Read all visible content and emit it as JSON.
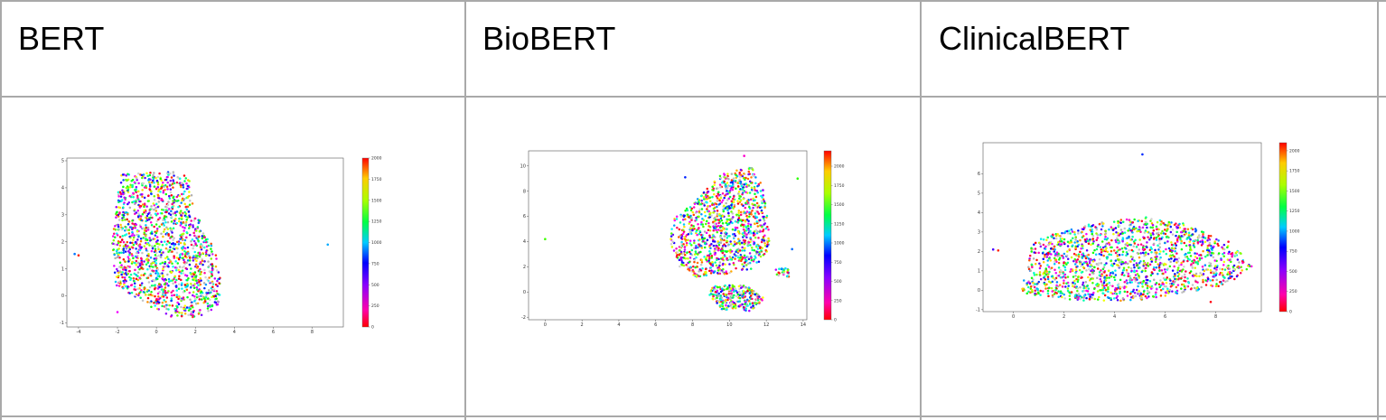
{
  "table": {
    "headers": [
      "BERT",
      "BioBERT",
      "ClinicalBERT"
    ]
  },
  "chart_data": [
    {
      "type": "scatter",
      "title": "BERT",
      "xlim": [
        -4.6,
        9.6
      ],
      "ylim": [
        -1.15,
        5.1
      ],
      "xticks": [
        "-4",
        "-2",
        "0",
        "2",
        "4",
        "6",
        "8"
      ],
      "yticks": [
        "-1",
        "0",
        "1",
        "2",
        "3",
        "4",
        "5"
      ],
      "colorbar": {
        "min": 0,
        "max": 2000,
        "ticks": [
          "0",
          "250",
          "500",
          "750",
          "1000",
          "1250",
          "1500",
          "1750",
          "2000"
        ],
        "colormap": "hsv"
      },
      "grid": false,
      "clusters": [
        {
          "shape": [
            [
              -1.8,
              4.5
            ],
            [
              0.8,
              4.6
            ],
            [
              1.7,
              4.4
            ],
            [
              1.9,
              3.2
            ],
            [
              2.6,
              2.3
            ],
            [
              3.4,
              0.9
            ],
            [
              3.3,
              -0.3
            ],
            [
              2.2,
              -0.8
            ],
            [
              0.6,
              -0.8
            ],
            [
              -0.5,
              -0.3
            ],
            [
              -2.1,
              0.4
            ],
            [
              -2.3,
              2.0
            ],
            [
              -2.0,
              3.8
            ]
          ],
          "n": 1500
        }
      ],
      "outliers": [
        [
          -4.2,
          1.55
        ],
        [
          -4.0,
          1.5
        ],
        [
          8.8,
          1.9
        ],
        [
          -2.0,
          -0.6
        ],
        [
          1.3,
          -0.75
        ]
      ]
    },
    {
      "type": "scatter",
      "title": "BioBERT",
      "xlim": [
        -0.9,
        14.2
      ],
      "ylim": [
        -2.2,
        11.2
      ],
      "xticks": [
        "0",
        "2",
        "4",
        "6",
        "8",
        "10",
        "12",
        "14"
      ],
      "yticks": [
        "-2",
        "0",
        "2",
        "4",
        "6",
        "8",
        "10"
      ],
      "colorbar": {
        "min": 0,
        "max": 2200,
        "ticks": [
          "0",
          "250",
          "500",
          "750",
          "1000",
          "1250",
          "1500",
          "1750",
          "2000"
        ],
        "colormap": "hsv"
      },
      "grid": false,
      "clusters": [
        {
          "shape": [
            [
              7.0,
              5.8
            ],
            [
              8.4,
              7.6
            ],
            [
              9.6,
              9.4
            ],
            [
              11.2,
              9.9
            ],
            [
              11.9,
              8.2
            ],
            [
              12.1,
              5.5
            ],
            [
              12.2,
              3.2
            ],
            [
              11.2,
              1.8
            ],
            [
              9.6,
              1.4
            ],
            [
              8.2,
              1.2
            ],
            [
              7.3,
              2.0
            ],
            [
              6.7,
              4.1
            ]
          ],
          "n": 1100
        },
        {
          "shape": [
            [
              9.0,
              0.5
            ],
            [
              10.8,
              0.6
            ],
            [
              11.9,
              -0.5
            ],
            [
              11.2,
              -1.5
            ],
            [
              9.6,
              -1.4
            ],
            [
              8.9,
              -0.3
            ]
          ],
          "n": 260
        },
        {
          "shape": [
            [
              12.5,
              1.9
            ],
            [
              13.2,
              1.9
            ],
            [
              13.3,
              1.2
            ],
            [
              12.6,
              1.2
            ]
          ],
          "n": 30
        }
      ],
      "outliers": [
        [
          0.0,
          4.2
        ],
        [
          13.7,
          9.0
        ],
        [
          10.8,
          10.8
        ],
        [
          7.6,
          9.1
        ],
        [
          13.4,
          3.4
        ]
      ]
    },
    {
      "type": "scatter",
      "title": "ClinicalBERT",
      "xlim": [
        -1.2,
        9.8
      ],
      "ylim": [
        -1.1,
        7.6
      ],
      "xticks": [
        "0",
        "2",
        "4",
        "6",
        "8"
      ],
      "yticks": [
        "-1",
        "0",
        "1",
        "2",
        "3",
        "4",
        "5",
        "6"
      ],
      "colorbar": {
        "min": 0,
        "max": 2100,
        "ticks": [
          "0",
          "250",
          "500",
          "750",
          "1000",
          "1250",
          "1500",
          "1750",
          "2000"
        ],
        "colormap": "hsv"
      },
      "grid": false,
      "clusters": [
        {
          "shape": [
            [
              0.8,
              2.6
            ],
            [
              3.0,
              3.4
            ],
            [
              5.2,
              3.8
            ],
            [
              6.6,
              3.5
            ],
            [
              7.7,
              2.9
            ],
            [
              8.9,
              2.0
            ],
            [
              9.5,
              1.3
            ],
            [
              8.5,
              0.3
            ],
            [
              6.5,
              -0.2
            ],
            [
              4.6,
              -0.6
            ],
            [
              2.2,
              -0.5
            ],
            [
              0.3,
              -0.2
            ],
            [
              0.5,
              1.2
            ]
          ],
          "n": 1600
        }
      ],
      "outliers": [
        [
          -0.8,
          2.1
        ],
        [
          -0.6,
          2.05
        ],
        [
          5.1,
          7.0
        ],
        [
          7.8,
          -0.6
        ],
        [
          8.5,
          2.5
        ]
      ]
    }
  ]
}
